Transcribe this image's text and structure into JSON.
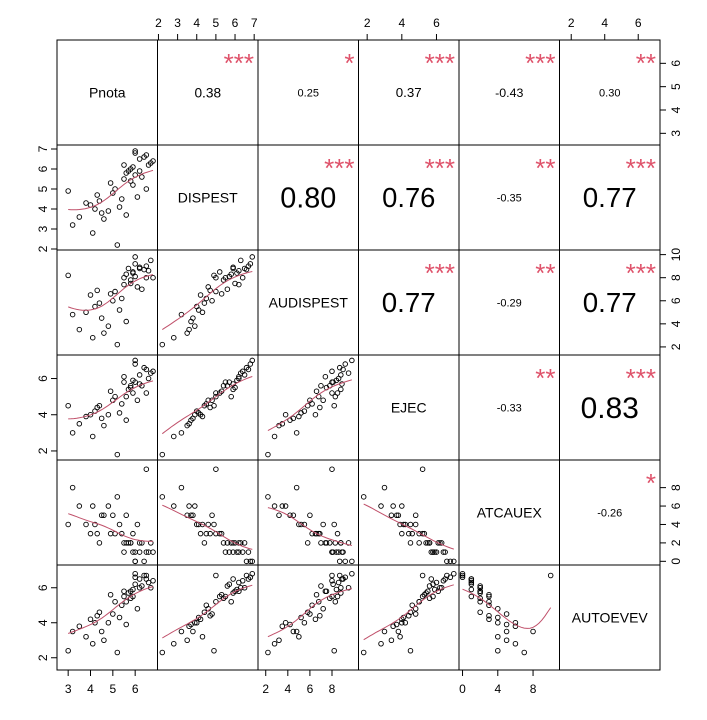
{
  "chart_data": {
    "type": "scatter-matrix",
    "variables": [
      {
        "name": "Pnota",
        "lim": [
          2.5,
          7.0
        ],
        "xticks": [
          3,
          4,
          5,
          6
        ],
        "yticks": [
          3,
          4,
          5,
          6
        ],
        "values": [
          3.0,
          4.0,
          6.0,
          5.5,
          4.5,
          6.2,
          3.5,
          5.8,
          6.5,
          4.2,
          5.0,
          5.9,
          6.6,
          5.2,
          5.6,
          4.8,
          6.0,
          3.8,
          6.3,
          5.4,
          6.8,
          4.6,
          5.7,
          6.1,
          3.2,
          5.9,
          4.4,
          6.4,
          5.1,
          5.8,
          4.1,
          6.0,
          5.3,
          6.7,
          4.9,
          5.6,
          6.2,
          4.3,
          5.5,
          6.5
        ]
      },
      {
        "name": "DISPEST",
        "lim": [
          1.95,
          7.2
        ],
        "xticks": [
          2,
          3,
          4,
          5,
          6,
          7
        ],
        "yticks": [
          2,
          3,
          4,
          5,
          6,
          7
        ],
        "values": [
          4.9,
          4.2,
          6.9,
          5.5,
          3.8,
          6.5,
          3.6,
          6.0,
          6.7,
          4.0,
          4.8,
          5.2,
          6.2,
          2.2,
          5.8,
          3.9,
          6.8,
          4.3,
          5.6,
          4.5,
          6.4,
          3.5,
          5.9,
          4.6,
          3.2,
          6.1,
          4.4,
          6.6,
          5.0,
          5.4,
          2.8,
          5.7,
          4.1,
          6.3,
          5.3,
          3.7,
          5.9,
          4.7,
          6.2,
          5.0
        ]
      },
      {
        "name": "AUDISPEST",
        "lim": [
          1.3,
          10.4
        ],
        "xticks": [
          2,
          4,
          6,
          8
        ],
        "yticks": [
          2,
          4,
          6,
          8,
          10
        ],
        "values": [
          8.2,
          6.5,
          9.8,
          8.0,
          4.5,
          8.8,
          3.5,
          7.5,
          9.0,
          5.5,
          6.0,
          8.5,
          8.6,
          2.2,
          8.3,
          3.8,
          9.2,
          5.0,
          7.0,
          6.2,
          8.0,
          3.2,
          8.8,
          7.2,
          4.8,
          8.4,
          5.8,
          8.7,
          6.8,
          7.8,
          2.8,
          8.1,
          5.2,
          9.5,
          6.6,
          4.2,
          8.9,
          6.9,
          7.4,
          8.0
        ]
      },
      {
        "name": "EJEC",
        "lim": [
          1.5,
          7.3
        ],
        "xticks": [
          2,
          4,
          6
        ],
        "yticks": [
          2,
          4,
          6
        ],
        "values": [
          4.5,
          4.0,
          7.0,
          5.8,
          3.8,
          6.2,
          3.5,
          5.5,
          6.5,
          4.2,
          4.8,
          5.2,
          6.0,
          1.8,
          5.0,
          4.0,
          6.8,
          3.9,
          5.6,
          4.6,
          6.4,
          3.4,
          5.4,
          4.8,
          3.0,
          5.9,
          4.5,
          6.6,
          5.0,
          5.6,
          2.8,
          5.8,
          4.1,
          6.3,
          5.3,
          3.7,
          5.7,
          4.4,
          6.1,
          5.2
        ]
      },
      {
        "name": "ATCAUEX",
        "lim": [
          -0.4,
          11
        ],
        "xticks": [
          0,
          4,
          8
        ],
        "yticks": [
          0,
          2,
          4,
          6,
          8
        ],
        "values": [
          4,
          3,
          0,
          1,
          5,
          2,
          6,
          2,
          1,
          4,
          5,
          3,
          1,
          7,
          2,
          6,
          0,
          4,
          2,
          3,
          1,
          5,
          2,
          4,
          8,
          1,
          2,
          0,
          3,
          2,
          6,
          1,
          4,
          2,
          3,
          5,
          1,
          3,
          2,
          10
        ]
      },
      {
        "name": "AUTOEVEV",
        "lim": [
          1.3,
          7.3
        ],
        "xticks": [
          2,
          4,
          6
        ],
        "yticks": [
          2,
          4,
          6
        ],
        "values": [
          2.4,
          4.2,
          6.8,
          5.5,
          3.5,
          6.0,
          3.8,
          5.8,
          6.5,
          4.0,
          4.5,
          5.5,
          6.3,
          2.3,
          5.2,
          4.0,
          6.6,
          3.2,
          6.1,
          5.0,
          6.4,
          3.0,
          5.7,
          4.8,
          3.5,
          5.9,
          4.6,
          6.7,
          5.2,
          5.4,
          2.8,
          6.2,
          4.3,
          6.0,
          5.6,
          3.9,
          6.5,
          4.4,
          5.8,
          6.7
        ]
      }
    ],
    "correlations": [
      [
        0.38,
        0.25,
        0.37,
        -0.43,
        0.3
      ],
      [
        0.8,
        0.76,
        -0.35,
        0.77
      ],
      [
        0.77,
        -0.29,
        0.77
      ],
      [
        -0.33,
        0.83
      ],
      [
        -0.26
      ]
    ],
    "correlation_labels": [
      [
        "0.38",
        "0.25",
        "0.37",
        "-0.43",
        "0.30"
      ],
      [
        "0.80",
        "0.76",
        "-0.35",
        "0.77"
      ],
      [
        "0.77",
        "-0.29",
        "0.77"
      ],
      [
        "-0.33",
        "0.83"
      ],
      [
        "-0.26"
      ]
    ],
    "stars": [
      [
        "***",
        "*",
        "***",
        "***",
        "**"
      ],
      [
        "***",
        "***",
        "**",
        "***"
      ],
      [
        "***",
        "**",
        "***"
      ],
      [
        "**",
        "***"
      ],
      [
        "*"
      ]
    ],
    "star_color": "#DF536B",
    "point_color": "#000000",
    "smooth_color": "#C0506A"
  }
}
